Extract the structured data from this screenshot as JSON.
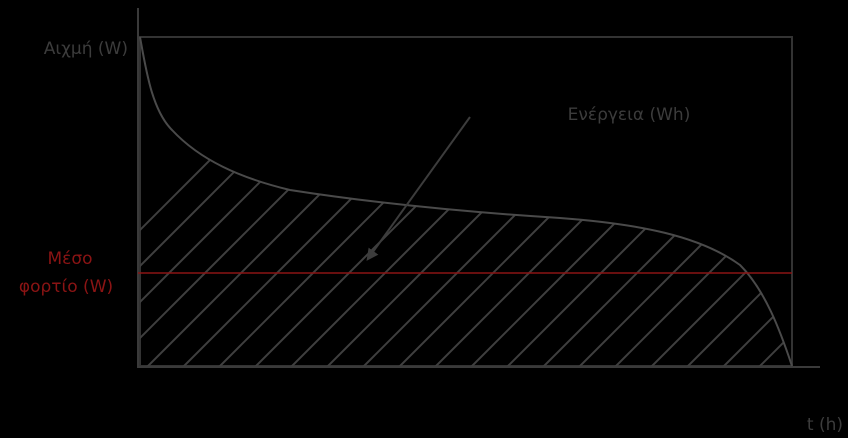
{
  "labels": {
    "peak": "Αιχμή (W)",
    "avg_line1": "Μέσο",
    "avg_line2": "φορτίο (W)",
    "energy": "Ενέργεια (Wh)",
    "time_axis": "t (h)"
  },
  "colors": {
    "background": "#000000",
    "axis": "#3a3a3a",
    "curve": "#4a4a4a",
    "hatch": "#3f3f3f",
    "frame": "#333333",
    "average_line": "#8b1414",
    "average_text": "#8b1414",
    "text": "#3c3c3c"
  }
}
